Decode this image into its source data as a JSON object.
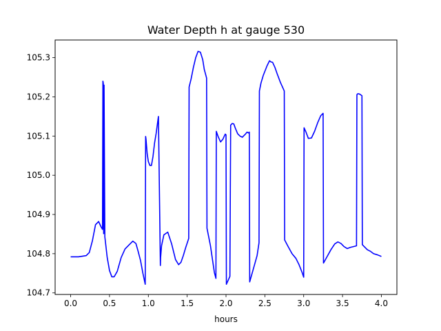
{
  "chart_data": {
    "type": "line",
    "title": "Water Depth h at gauge 530",
    "xlabel": "hours",
    "ylabel": "",
    "xlim": [
      -0.2,
      4.2
    ],
    "ylim": [
      104.696,
      105.345
    ],
    "xticks": [
      0.0,
      0.5,
      1.0,
      1.5,
      2.0,
      2.5,
      3.0,
      3.5,
      4.0
    ],
    "xtick_labels": [
      "0.0",
      "0.5",
      "1.0",
      "1.5",
      "2.0",
      "2.5",
      "3.0",
      "3.5",
      "4.0"
    ],
    "yticks": [
      104.7,
      104.8,
      104.9,
      105.0,
      105.1,
      105.2,
      105.3
    ],
    "ytick_labels": [
      "104.7",
      "104.8",
      "104.9",
      "105.0",
      "105.1",
      "105.2",
      "105.3"
    ],
    "grid": false,
    "series": [
      {
        "color": "#0000ff",
        "x": [
          0.0,
          0.1,
          0.2,
          0.24,
          0.28,
          0.32,
          0.36,
          0.39,
          0.41,
          0.415,
          0.42,
          0.425,
          0.43,
          0.44,
          0.45,
          0.47,
          0.5,
          0.53,
          0.56,
          0.6,
          0.65,
          0.7,
          0.75,
          0.8,
          0.84,
          0.87,
          0.9,
          0.93,
          0.96,
          0.965,
          0.97,
          0.985,
          1.0,
          1.02,
          1.04,
          1.06,
          1.08,
          1.1,
          1.13,
          1.155,
          1.158,
          1.17,
          1.2,
          1.25,
          1.3,
          1.35,
          1.39,
          1.42,
          1.45,
          1.48,
          1.52,
          1.525,
          1.55,
          1.58,
          1.61,
          1.64,
          1.67,
          1.7,
          1.72,
          1.75,
          1.755,
          1.8,
          1.85,
          1.87,
          1.875,
          1.9,
          1.93,
          1.96,
          1.99,
          2.0,
          2.005,
          2.05,
          2.06,
          2.08,
          2.1,
          2.12,
          2.15,
          2.18,
          2.21,
          2.25,
          2.27,
          2.29,
          2.3,
          2.305,
          2.4,
          2.425,
          2.43,
          2.45,
          2.48,
          2.5,
          2.53,
          2.56,
          2.58,
          2.6,
          2.63,
          2.66,
          2.7,
          2.75,
          2.755,
          2.8,
          2.85,
          2.9,
          2.94,
          2.98,
          3.0,
          3.005,
          3.03,
          3.06,
          3.1,
          3.14,
          3.18,
          3.22,
          3.25,
          3.255,
          3.3,
          3.35,
          3.4,
          3.44,
          3.48,
          3.52,
          3.56,
          3.6,
          3.64,
          3.68,
          3.685,
          3.69,
          3.7,
          3.72,
          3.75,
          3.755,
          3.78,
          3.82,
          3.86,
          3.9,
          3.95,
          4.0
        ],
        "values": [
          104.792,
          104.792,
          104.795,
          104.803,
          104.833,
          104.874,
          104.882,
          104.869,
          104.862,
          105.24,
          105.235,
          104.851,
          105.23,
          104.843,
          104.826,
          104.791,
          104.757,
          104.741,
          104.741,
          104.755,
          104.79,
          104.812,
          104.822,
          104.832,
          104.826,
          104.805,
          104.782,
          104.75,
          104.722,
          105.099,
          105.092,
          105.055,
          105.035,
          105.025,
          105.025,
          105.048,
          105.082,
          105.106,
          105.15,
          104.77,
          104.79,
          104.82,
          104.848,
          104.855,
          104.825,
          104.785,
          104.772,
          104.778,
          104.795,
          104.815,
          104.839,
          105.225,
          105.245,
          105.275,
          105.3,
          105.316,
          105.314,
          105.295,
          105.27,
          105.248,
          104.865,
          104.82,
          104.752,
          104.737,
          105.112,
          105.098,
          105.085,
          105.092,
          105.105,
          105.103,
          104.722,
          104.742,
          105.128,
          105.132,
          105.131,
          105.12,
          105.106,
          105.1,
          105.097,
          105.105,
          105.11,
          105.108,
          105.11,
          104.728,
          104.795,
          104.828,
          105.215,
          105.235,
          105.255,
          105.265,
          105.28,
          105.292,
          105.289,
          105.288,
          105.275,
          105.258,
          105.237,
          105.215,
          104.835,
          104.818,
          104.8,
          104.788,
          104.772,
          104.752,
          104.74,
          105.121,
          105.11,
          105.094,
          105.095,
          105.112,
          105.134,
          105.152,
          105.158,
          104.776,
          104.792,
          104.81,
          104.825,
          104.83,
          104.826,
          104.818,
          104.813,
          104.816,
          104.818,
          104.82,
          105.205,
          105.207,
          105.208,
          105.207,
          105.203,
          104.823,
          104.818,
          104.81,
          104.806,
          104.8,
          104.797,
          104.793
        ]
      }
    ]
  }
}
